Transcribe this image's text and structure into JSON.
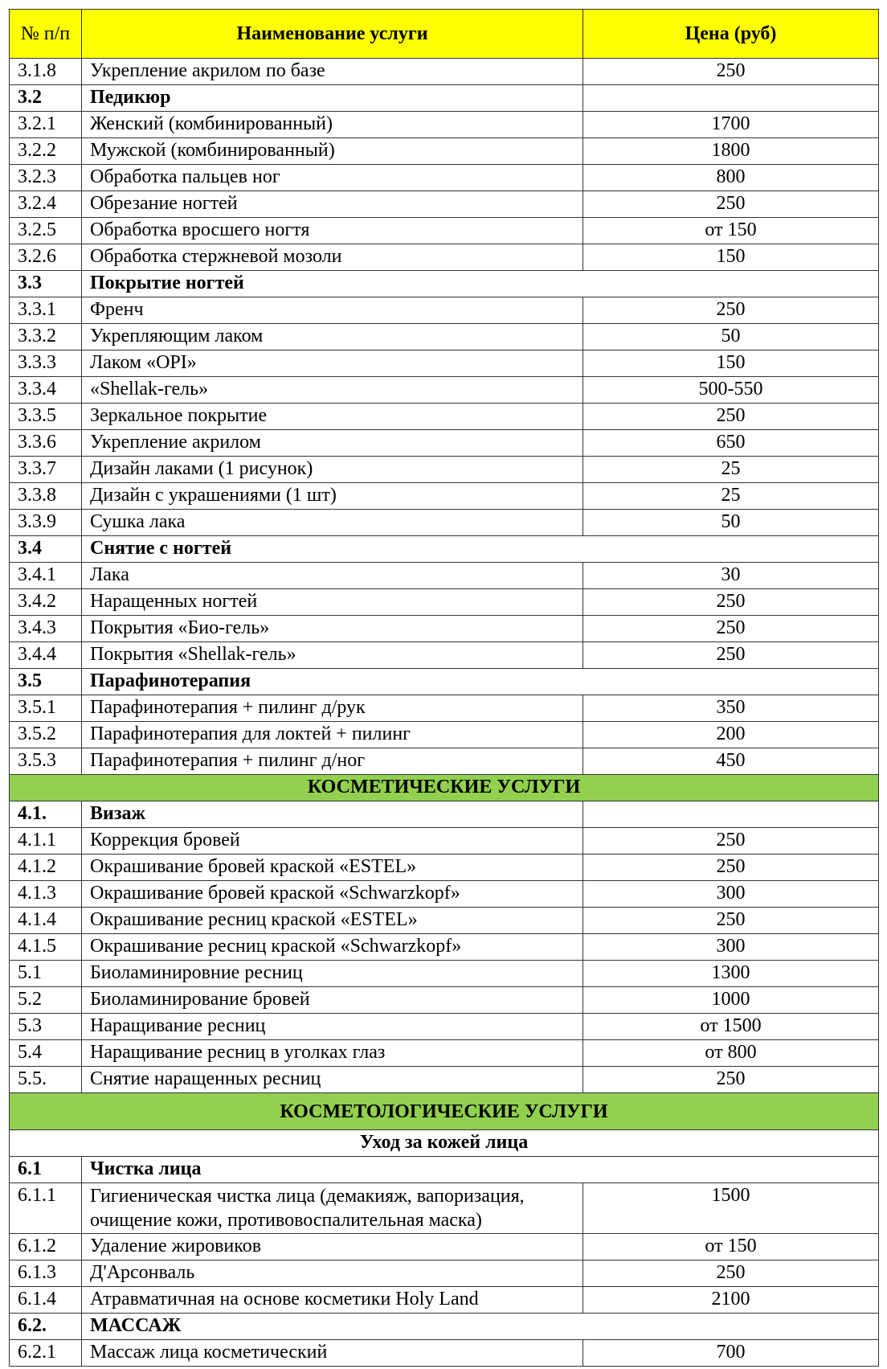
{
  "header": {
    "num": "№ п/п",
    "name": "Наименование услуги",
    "price": "Цена (руб)"
  },
  "colors": {
    "header_bg": "#ffff00",
    "category_bg": "#92d050"
  },
  "rows": [
    {
      "type": "item",
      "num": "3.1.8",
      "name": "Укрепление акрилом по базе",
      "price": "250"
    },
    {
      "type": "section",
      "num": "3.2",
      "name": "Педикюр",
      "price": ""
    },
    {
      "type": "item",
      "num": "3.2.1",
      "name": "Женский (комбинированный)",
      "price": "1700"
    },
    {
      "type": "item",
      "num": "3.2.2",
      "name": "Мужской (комбинированный)",
      "price": "1800"
    },
    {
      "type": "item",
      "num": "3.2.3",
      "name": "Обработка пальцев ног",
      "price": "800"
    },
    {
      "type": "item",
      "num": "3.2.4",
      "name": "Обрезание ногтей",
      "price": "250"
    },
    {
      "type": "item",
      "num": "3.2.5",
      "name": "Обработка вросшего ногтя",
      "price": "от 150"
    },
    {
      "type": "item",
      "num": "3.2.6",
      "name": "Обработка стержневой мозоли",
      "price": "150"
    },
    {
      "type": "section",
      "num": "3.3",
      "name": "Покрытие ногтей",
      "span": true
    },
    {
      "type": "item",
      "num": "3.3.1",
      "name": "Френч",
      "price": "250"
    },
    {
      "type": "item",
      "num": "3.3.2",
      "name": "Укрепляющим лаком",
      "price": "50"
    },
    {
      "type": "item",
      "num": "3.3.3",
      "name": "Лаком «OPI»",
      "price": "150"
    },
    {
      "type": "item",
      "num": "3.3.4",
      "name": "«Shellak-гель»",
      "price": "500-550"
    },
    {
      "type": "item",
      "num": "3.3.5",
      "name": "Зеркальное покрытие",
      "price": "250"
    },
    {
      "type": "item",
      "num": "3.3.6",
      "name": "Укрепление акрилом",
      "price": "650"
    },
    {
      "type": "item",
      "num": "3.3.7",
      "name": "Дизайн лаками (1 рисунок)",
      "price": "25"
    },
    {
      "type": "item",
      "num": "3.3.8",
      "name": "Дизайн с украшениями (1 шт)",
      "price": "25"
    },
    {
      "type": "item",
      "num": "3.3.9",
      "name": "Сушка лака",
      "price": "50"
    },
    {
      "type": "section",
      "num": "3.4",
      "name": "Снятие с ногтей",
      "span": true
    },
    {
      "type": "item",
      "num": "3.4.1",
      "name": "Лака",
      "price": "30"
    },
    {
      "type": "item",
      "num": "3.4.2",
      "name": "Наращенных ногтей",
      "price": "250"
    },
    {
      "type": "item",
      "num": "3.4.3",
      "name": "Покрытия «Био-гель»",
      "price": "250"
    },
    {
      "type": "item",
      "num": "3.4.4",
      "name": "Покрытия «Shellak-гель»",
      "price": "250"
    },
    {
      "type": "section",
      "num": "3.5",
      "name": "Парафинотерапия",
      "span": true
    },
    {
      "type": "item",
      "num": "3.5.1",
      "name": "Парафинотерапия + пилинг д/рук",
      "price": "350"
    },
    {
      "type": "item",
      "num": "3.5.2",
      "name": "Парафинотерапия для локтей + пилинг",
      "price": "200"
    },
    {
      "type": "item",
      "num": "3.5.3",
      "name": "Парафинотерапия + пилинг д/ног",
      "price": "450"
    },
    {
      "type": "category",
      "name": "КОСМЕТИЧЕСКИЕ УСЛУГИ"
    },
    {
      "type": "section",
      "num": "4.1.",
      "name": "Визаж",
      "price": ""
    },
    {
      "type": "item",
      "num": "4.1.1",
      "name": "Коррекция бровей",
      "price": "250"
    },
    {
      "type": "item",
      "num": "4.1.2",
      "name": "Окрашивание бровей краской «ESTEL»",
      "price": "250"
    },
    {
      "type": "item",
      "num": "4.1.3",
      "name": "Окрашивание бровей краской «Schwarzkopf»",
      "price": "300"
    },
    {
      "type": "item",
      "num": "4.1.4",
      "name": "Окрашивание ресниц краской «ESTEL»",
      "price": "250"
    },
    {
      "type": "item",
      "num": "4.1.5",
      "name": "Окрашивание ресниц краской «Schwarzkopf»",
      "price": "300"
    },
    {
      "type": "item",
      "num": "5.1",
      "name": "Биоламинировние ресниц",
      "price": "1300"
    },
    {
      "type": "item",
      "num": "5.2",
      "name": "Биоламинирование бровей",
      "price": "1000"
    },
    {
      "type": "item",
      "num": "5.3",
      "name": "Наращивание ресниц",
      "price": "от 1500"
    },
    {
      "type": "item",
      "num": "5.4",
      "name": "Наращивание ресниц в уголках глаз",
      "price": "от 800"
    },
    {
      "type": "item",
      "num": "5.5.",
      "name": "Снятие наращенных ресниц",
      "price": "250"
    },
    {
      "type": "category",
      "name": "КОСМЕТОЛОГИЧЕСКИЕ УСЛУГИ",
      "tall": true
    },
    {
      "type": "subcategory",
      "name": "Уход за кожей лица"
    },
    {
      "type": "section",
      "num": "6.1",
      "name": "Чистка лица",
      "span": true
    },
    {
      "type": "item",
      "num": "6.1.1",
      "name": "Гигиеническая чистка лица (демакияж, вапоризация, очищение кожи, противовоспалительная маска)",
      "price": "1500",
      "multi": true
    },
    {
      "type": "item",
      "num": "6.1.2",
      "name": "Удаление жировиков",
      "price": "от 150"
    },
    {
      "type": "item",
      "num": "6.1.3",
      "name": "Д'Арсонваль",
      "price": "250"
    },
    {
      "type": "item",
      "num": "6.1.4",
      "name": "Атравматичная на основе косметики Holy Land",
      "price": "2100"
    },
    {
      "type": "section",
      "num": "6.2.",
      "name": "МАССАЖ",
      "span": true
    },
    {
      "type": "item",
      "num": "6.2.1",
      "name": "Массаж лица косметический",
      "price": "700"
    }
  ]
}
